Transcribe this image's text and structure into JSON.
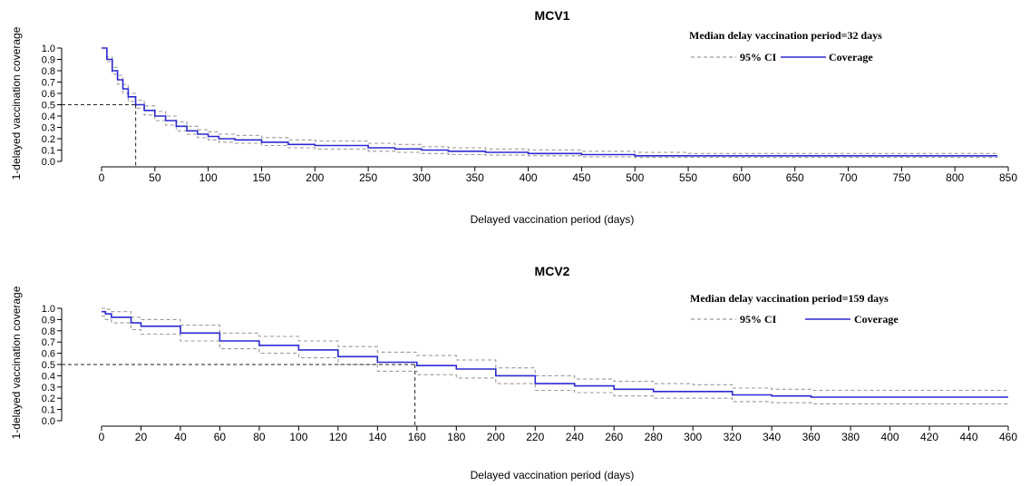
{
  "chart_data": [
    {
      "type": "line",
      "title": "MCV1",
      "xlabel": "Delayed vaccination period (days)",
      "ylabel": "1-delayed vaccination coverage",
      "annotation": "Median delay vaccination period=32 days",
      "median": 32,
      "xlim": [
        0,
        850
      ],
      "ylim": [
        0,
        1.0
      ],
      "xticks": [
        0,
        50,
        100,
        150,
        200,
        250,
        300,
        350,
        400,
        450,
        500,
        550,
        600,
        650,
        700,
        750,
        800,
        850
      ],
      "yticks": [
        0.0,
        0.1,
        0.2,
        0.3,
        0.4,
        0.5,
        0.6,
        0.7,
        0.8,
        0.9,
        1.0
      ],
      "legend": {
        "position": "top-right",
        "ci_label": "95% CI",
        "coverage_label": "Coverage"
      },
      "colors": {
        "coverage": "#2a2ad2",
        "ci": "#9a9a9a",
        "reference": "#222222"
      },
      "series": [
        {
          "name": "Coverage",
          "x": [
            0,
            5,
            10,
            15,
            20,
            25,
            32,
            40,
            50,
            60,
            70,
            80,
            90,
            100,
            110,
            125,
            150,
            175,
            200,
            250,
            275,
            300,
            325,
            360,
            400,
            450,
            500,
            550,
            600,
            700,
            800,
            840
          ],
          "y": [
            1.0,
            0.9,
            0.8,
            0.72,
            0.64,
            0.57,
            0.5,
            0.45,
            0.4,
            0.36,
            0.31,
            0.27,
            0.24,
            0.22,
            0.2,
            0.19,
            0.17,
            0.15,
            0.14,
            0.12,
            0.11,
            0.1,
            0.09,
            0.08,
            0.07,
            0.06,
            0.05,
            0.05,
            0.05,
            0.05,
            0.05,
            0.05
          ]
        },
        {
          "name": "95% CI",
          "x": [
            0,
            5,
            10,
            15,
            20,
            25,
            32,
            40,
            50,
            60,
            70,
            80,
            90,
            100,
            110,
            125,
            150,
            175,
            200,
            250,
            275,
            300,
            325,
            360,
            400,
            450,
            500,
            550,
            600,
            700,
            800,
            840
          ],
          "upper": [
            1.0,
            0.92,
            0.83,
            0.76,
            0.68,
            0.6,
            0.54,
            0.49,
            0.44,
            0.4,
            0.35,
            0.31,
            0.28,
            0.26,
            0.24,
            0.23,
            0.21,
            0.19,
            0.18,
            0.16,
            0.15,
            0.13,
            0.12,
            0.11,
            0.1,
            0.09,
            0.08,
            0.07,
            0.07,
            0.07,
            0.07,
            0.07
          ],
          "lower": [
            1.0,
            0.88,
            0.77,
            0.68,
            0.6,
            0.53,
            0.47,
            0.41,
            0.36,
            0.32,
            0.27,
            0.24,
            0.21,
            0.19,
            0.17,
            0.16,
            0.14,
            0.12,
            0.11,
            0.09,
            0.08,
            0.07,
            0.06,
            0.055,
            0.05,
            0.04,
            0.035,
            0.035,
            0.035,
            0.035,
            0.035,
            0.035
          ]
        }
      ]
    },
    {
      "type": "line",
      "title": "MCV2",
      "xlabel": "Delayed vaccination period (days)",
      "ylabel": "1-delayed vaccination coverage",
      "annotation": "Median delay vaccination period=159 days",
      "median": 159,
      "xlim": [
        0,
        460
      ],
      "ylim": [
        0,
        1.0
      ],
      "xticks": [
        0,
        20,
        40,
        60,
        80,
        100,
        120,
        140,
        160,
        180,
        200,
        220,
        240,
        260,
        280,
        300,
        320,
        340,
        360,
        380,
        400,
        420,
        440,
        460
      ],
      "yticks": [
        0.0,
        0.1,
        0.2,
        0.3,
        0.4,
        0.5,
        0.6,
        0.7,
        0.8,
        0.9,
        1.0
      ],
      "legend": {
        "position": "top-right",
        "ci_label": "95% CI",
        "coverage_label": "Coverage"
      },
      "colors": {
        "coverage": "#2a2ad2",
        "ci": "#9a9a9a",
        "reference": "#222222"
      },
      "series": [
        {
          "name": "Coverage",
          "x": [
            0,
            2,
            5,
            15,
            20,
            40,
            60,
            80,
            100,
            120,
            140,
            160,
            180,
            200,
            220,
            240,
            260,
            280,
            300,
            320,
            340,
            360,
            380,
            400,
            420,
            440,
            460
          ],
          "y": [
            0.97,
            0.95,
            0.92,
            0.87,
            0.84,
            0.78,
            0.71,
            0.67,
            0.63,
            0.57,
            0.52,
            0.49,
            0.46,
            0.4,
            0.33,
            0.31,
            0.28,
            0.26,
            0.26,
            0.23,
            0.22,
            0.21,
            0.21,
            0.21,
            0.21,
            0.21,
            0.21
          ]
        },
        {
          "name": "95% CI",
          "x": [
            0,
            2,
            5,
            15,
            20,
            40,
            60,
            80,
            100,
            120,
            140,
            160,
            180,
            200,
            220,
            240,
            260,
            280,
            300,
            320,
            340,
            360,
            380,
            400,
            420,
            440,
            460
          ],
          "upper": [
            1.0,
            0.99,
            0.97,
            0.92,
            0.9,
            0.85,
            0.78,
            0.75,
            0.71,
            0.66,
            0.61,
            0.58,
            0.54,
            0.47,
            0.4,
            0.37,
            0.35,
            0.33,
            0.32,
            0.29,
            0.28,
            0.27,
            0.27,
            0.27,
            0.27,
            0.27,
            0.27
          ],
          "lower": [
            0.93,
            0.9,
            0.87,
            0.81,
            0.77,
            0.71,
            0.64,
            0.6,
            0.56,
            0.5,
            0.44,
            0.41,
            0.38,
            0.33,
            0.27,
            0.25,
            0.22,
            0.2,
            0.2,
            0.17,
            0.16,
            0.15,
            0.15,
            0.15,
            0.15,
            0.15,
            0.15
          ]
        }
      ]
    }
  ]
}
